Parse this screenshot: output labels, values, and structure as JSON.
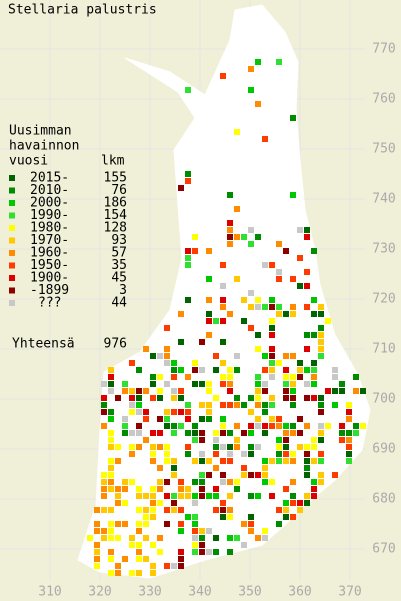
{
  "title": "Stellaria palustris",
  "legend": {
    "header": [
      "Uusimman",
      "havainnon",
      "vuosi"
    ],
    "count_header": "lkm",
    "entries": [
      {
        "label": "2015-",
        "count": 155,
        "color": "#006400"
      },
      {
        "label": "2010-",
        "count": 76,
        "color": "#008c00"
      },
      {
        "label": "2000-",
        "count": 186,
        "color": "#00c800"
      },
      {
        "label": "1990-",
        "count": 154,
        "color": "#30e030"
      },
      {
        "label": "1980-",
        "count": 128,
        "color": "#ffff00"
      },
      {
        "label": "1970-",
        "count": 93,
        "color": "#ffc800"
      },
      {
        "label": "1960-",
        "count": 57,
        "color": "#ff8c00"
      },
      {
        "label": "1950-",
        "count": 35,
        "color": "#ff3c00"
      },
      {
        "label": "1900-",
        "count": 45,
        "color": "#dc0000"
      },
      {
        "label": "-1899",
        "count": 3,
        "color": "#8c0000"
      },
      {
        "label": "???",
        "count": 44,
        "color": "#c8c8c8"
      }
    ],
    "total_label": "Yhteensä",
    "total": 976
  },
  "x_axis": {
    "ticks": [
      310,
      320,
      330,
      340,
      350,
      360,
      370
    ]
  },
  "y_axis": {
    "ticks": [
      670,
      680,
      690,
      700,
      710,
      720,
      730,
      740,
      750,
      760,
      770
    ]
  }
}
